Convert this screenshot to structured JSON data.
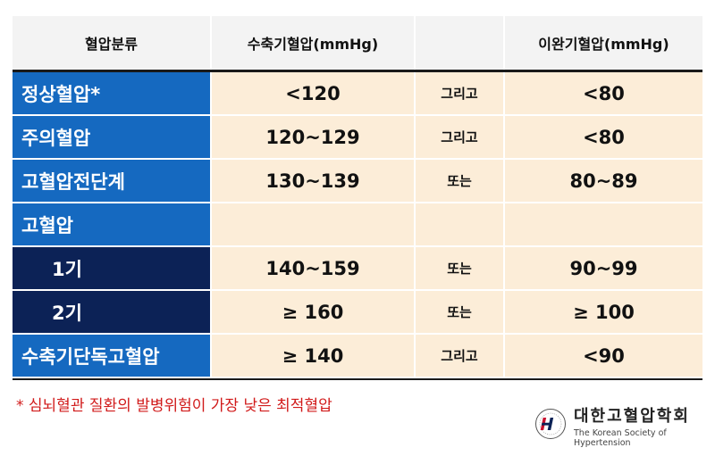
{
  "header": {
    "category": "혈압분류",
    "systolic": "수축기혈압(mmHg)",
    "conjunction": "",
    "diastolic": "이완기혈압(mmHg)"
  },
  "rows": [
    {
      "label": "정상혈압*",
      "systolic": "<120",
      "conj": "그리고",
      "diastolic": "<80"
    },
    {
      "label": "주의혈압",
      "systolic": "120~129",
      "conj": "그리고",
      "diastolic": "<80"
    },
    {
      "label": "고혈압전단계",
      "systolic": "130~139",
      "conj": "또는",
      "diastolic": "80~89"
    },
    {
      "label": "고혈압",
      "systolic": "",
      "conj": "",
      "diastolic": ""
    },
    {
      "label": "1기",
      "systolic": "140~159",
      "conj": "또는",
      "diastolic": "90~99"
    },
    {
      "label": "2기",
      "systolic": "≥ 160",
      "conj": "또는",
      "diastolic": "≥ 100"
    },
    {
      "label": "수축기단독고혈압",
      "systolic": "≥ 140",
      "conj": "그리고",
      "diastolic": "<90"
    }
  ],
  "footnote": "* 심뇌혈관 질환의 발병위험이 가장 낮은 최적혈압",
  "logo": {
    "korean": "대한고혈압학회",
    "english": "The Korean Society of Hypertension"
  },
  "colors": {
    "label_blue": "#1569c0",
    "label_navy": "#0c2256",
    "value_bg": "#fcedd8",
    "footnote_red": "#d11a1a"
  }
}
